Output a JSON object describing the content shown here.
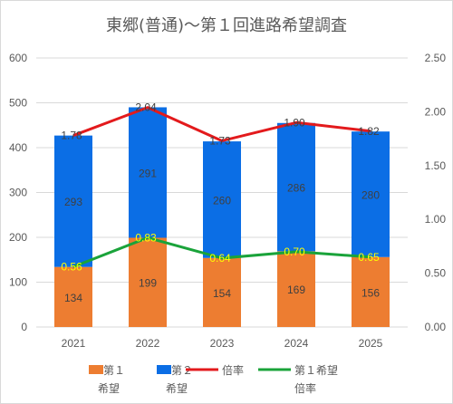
{
  "chart_data": {
    "type": "bar",
    "title": "東郷(普通)〜第１回進路希望調査",
    "categories": [
      "2021",
      "2022",
      "2023",
      "2024",
      "2025"
    ],
    "stacked": true,
    "series": [
      {
        "name": "第１希望",
        "kind": "bar",
        "axis": "left",
        "color": "#ed7d31",
        "values": [
          134,
          199,
          154,
          169,
          156
        ]
      },
      {
        "name": "第２希望",
        "kind": "bar",
        "axis": "left",
        "color": "#0b6ee5",
        "values": [
          293,
          291,
          260,
          286,
          280
        ]
      },
      {
        "name": "倍率",
        "kind": "line",
        "axis": "right",
        "color": "#e31a1c",
        "values": [
          1.78,
          2.04,
          1.73,
          1.9,
          1.82
        ],
        "labels": [
          "1.78",
          "2.04",
          "1.73",
          "1.90",
          "1.82"
        ]
      },
      {
        "name": "第１希望倍率",
        "kind": "line",
        "axis": "right",
        "color": "#1aa33a",
        "values": [
          0.56,
          0.83,
          0.64,
          0.7,
          0.65
        ],
        "labels": [
          "0.56",
          "0.83",
          "0.64",
          "0.70",
          "0.65"
        ]
      }
    ],
    "y_left": {
      "min": 0,
      "max": 600,
      "ticks": [
        "0",
        "100",
        "200",
        "300",
        "400",
        "500",
        "600"
      ]
    },
    "y_right": {
      "min": 0,
      "max": 2.5,
      "ticks": [
        "0.00",
        "0.50",
        "1.00",
        "1.50",
        "2.00",
        "2.50"
      ]
    },
    "grid": true,
    "legend": {
      "placement": "bottom",
      "items": [
        {
          "line1": "第１",
          "line2": "希望",
          "marker": "bar",
          "color": "#ed7d31"
        },
        {
          "line1": "第２",
          "line2": "希望",
          "marker": "bar",
          "color": "#0b6ee5"
        },
        {
          "line1": "倍率",
          "line2": "",
          "marker": "line",
          "color": "#e31a1c"
        },
        {
          "line1": "第１希望",
          "line2": "倍率",
          "marker": "line",
          "color": "#1aa33a"
        }
      ]
    }
  }
}
